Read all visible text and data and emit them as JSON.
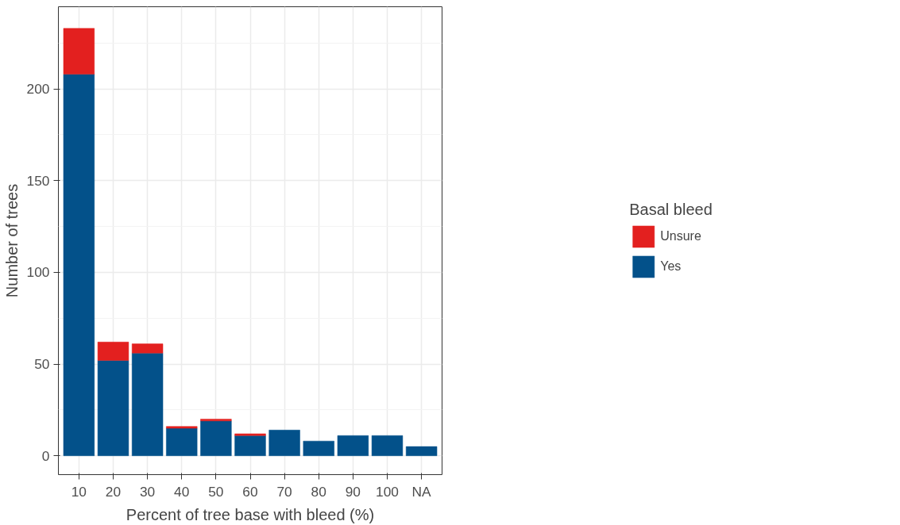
{
  "chart_data": {
    "type": "bar",
    "stacked": true,
    "xlabel": "Percent of tree base with bleed (%)",
    "ylabel": "Number of trees",
    "legend_title": "Basal bleed",
    "categories": [
      "10",
      "20",
      "30",
      "40",
      "50",
      "60",
      "70",
      "80",
      "90",
      "100",
      "NA"
    ],
    "series": [
      {
        "name": "Yes",
        "color": "#03518a",
        "values": [
          208,
          52,
          56,
          15,
          19,
          11,
          14,
          8,
          11,
          11,
          5
        ]
      },
      {
        "name": "Unsure",
        "color": "#e3201f",
        "values": [
          25,
          10,
          5,
          1,
          1,
          1,
          null,
          null,
          null,
          null,
          null
        ]
      }
    ],
    "ylim": [
      -10.3,
      244.8
    ],
    "yticks": [
      0,
      50,
      100,
      150,
      200
    ],
    "grid": true,
    "legend": "right"
  }
}
